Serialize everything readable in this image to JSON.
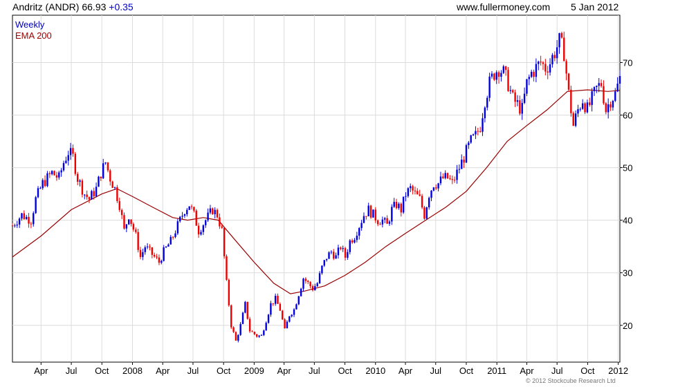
{
  "header": {
    "name": "Andritz (ANDR)",
    "price": "66.93",
    "change": "+0.35",
    "site": "www.fullermoney.com",
    "date": "5 Jan 2012"
  },
  "legend": {
    "weekly": "Weekly",
    "ema": "EMA 200"
  },
  "copyright": "© 2012 Stockcube Research Ltd",
  "colors": {
    "up": "#0000dd",
    "down": "#ee0000",
    "ema": "#990000",
    "grid": "#dcdcdc",
    "axis": "#000000"
  },
  "chart_data": {
    "type": "line",
    "ylim": [
      13,
      79
    ],
    "yticks": [
      20,
      30,
      40,
      50,
      60,
      70
    ],
    "xlim": [
      "2007-01-05",
      "2012-01-06"
    ],
    "xticks": [
      {
        "date": "2007-04-01",
        "label": "Apr"
      },
      {
        "date": "2007-07-01",
        "label": "Jul"
      },
      {
        "date": "2007-10-01",
        "label": "Oct"
      },
      {
        "date": "2008-01-01",
        "label": "2008"
      },
      {
        "date": "2008-04-01",
        "label": "Apr"
      },
      {
        "date": "2008-07-01",
        "label": "Jul"
      },
      {
        "date": "2008-10-01",
        "label": "Oct"
      },
      {
        "date": "2009-01-01",
        "label": "2009"
      },
      {
        "date": "2009-04-01",
        "label": "Apr"
      },
      {
        "date": "2009-07-01",
        "label": "Jul"
      },
      {
        "date": "2009-10-01",
        "label": "Oct"
      },
      {
        "date": "2010-01-01",
        "label": "2010"
      },
      {
        "date": "2010-04-01",
        "label": "Apr"
      },
      {
        "date": "2010-07-01",
        "label": "Jul"
      },
      {
        "date": "2010-10-01",
        "label": "Oct"
      },
      {
        "date": "2011-01-01",
        "label": "2011"
      },
      {
        "date": "2011-04-01",
        "label": "Apr"
      },
      {
        "date": "2011-07-01",
        "label": "Jul"
      },
      {
        "date": "2011-10-01",
        "label": "Oct"
      },
      {
        "date": "2012-01-01",
        "label": "2012"
      }
    ],
    "price_series": {
      "name": "Weekly",
      "points": [
        [
          "2007-01-05",
          39
        ],
        [
          "2007-02-02",
          41
        ],
        [
          "2007-03-02",
          40
        ],
        [
          "2007-03-16",
          44
        ],
        [
          "2007-04-06",
          47
        ],
        [
          "2007-05-04",
          49
        ],
        [
          "2007-05-25",
          48
        ],
        [
          "2007-06-08",
          51
        ],
        [
          "2007-06-22",
          53
        ],
        [
          "2007-07-06",
          52
        ],
        [
          "2007-07-20",
          48
        ],
        [
          "2007-08-10",
          45
        ],
        [
          "2007-08-24",
          44
        ],
        [
          "2007-09-14",
          46
        ],
        [
          "2007-09-28",
          49
        ],
        [
          "2007-10-12",
          51
        ],
        [
          "2007-10-26",
          48
        ],
        [
          "2007-11-09",
          46
        ],
        [
          "2007-11-23",
          43
        ],
        [
          "2007-12-07",
          38
        ],
        [
          "2007-12-21",
          41
        ],
        [
          "2008-01-11",
          37
        ],
        [
          "2008-01-25",
          33
        ],
        [
          "2008-02-08",
          35
        ],
        [
          "2008-02-22",
          34
        ],
        [
          "2008-03-07",
          33
        ],
        [
          "2008-03-21",
          32
        ],
        [
          "2008-04-04",
          34
        ],
        [
          "2008-04-25",
          36
        ],
        [
          "2008-05-16",
          39
        ],
        [
          "2008-06-06",
          42
        ],
        [
          "2008-06-20",
          43
        ],
        [
          "2008-07-04",
          41
        ],
        [
          "2008-07-18",
          38
        ],
        [
          "2008-08-08",
          40
        ],
        [
          "2008-08-29",
          42
        ],
        [
          "2008-09-12",
          41
        ],
        [
          "2008-09-26",
          38
        ],
        [
          "2008-10-10",
          28
        ],
        [
          "2008-10-24",
          20
        ],
        [
          "2008-11-07",
          17
        ],
        [
          "2008-11-21",
          20
        ],
        [
          "2008-12-05",
          24
        ],
        [
          "2008-12-19",
          19
        ],
        [
          "2009-01-09",
          18
        ],
        [
          "2009-01-23",
          18
        ],
        [
          "2009-02-06",
          21
        ],
        [
          "2009-02-20",
          24
        ],
        [
          "2009-03-06",
          25
        ],
        [
          "2009-03-20",
          23
        ],
        [
          "2009-04-03",
          19
        ],
        [
          "2009-04-17",
          22
        ],
        [
          "2009-05-01",
          23
        ],
        [
          "2009-05-15",
          26
        ],
        [
          "2009-05-29",
          29
        ],
        [
          "2009-06-12",
          28
        ],
        [
          "2009-06-26",
          27
        ],
        [
          "2009-07-10",
          28
        ],
        [
          "2009-07-24",
          31
        ],
        [
          "2009-08-07",
          33
        ],
        [
          "2009-08-21",
          34
        ],
        [
          "2009-09-04",
          33
        ],
        [
          "2009-09-18",
          35
        ],
        [
          "2009-10-02",
          33
        ],
        [
          "2009-10-16",
          36
        ],
        [
          "2009-10-30",
          37
        ],
        [
          "2009-11-13",
          39
        ],
        [
          "2009-11-27",
          41
        ],
        [
          "2009-12-11",
          42
        ],
        [
          "2009-12-25",
          41
        ],
        [
          "2010-01-08",
          40
        ],
        [
          "2010-01-22",
          40
        ],
        [
          "2010-02-05",
          39
        ],
        [
          "2010-02-19",
          42
        ],
        [
          "2010-03-05",
          43
        ],
        [
          "2010-03-19",
          42
        ],
        [
          "2010-04-02",
          45
        ],
        [
          "2010-04-16",
          46
        ],
        [
          "2010-04-30",
          45
        ],
        [
          "2010-05-14",
          44
        ],
        [
          "2010-05-28",
          41
        ],
        [
          "2010-06-11",
          45
        ],
        [
          "2010-06-25",
          47
        ],
        [
          "2010-07-09",
          47
        ],
        [
          "2010-07-23",
          48
        ],
        [
          "2010-08-06",
          48
        ],
        [
          "2010-08-20",
          47
        ],
        [
          "2010-09-03",
          49
        ],
        [
          "2010-09-17",
          51
        ],
        [
          "2010-10-01",
          53
        ],
        [
          "2010-10-15",
          55
        ],
        [
          "2010-10-29",
          56
        ],
        [
          "2010-11-12",
          58
        ],
        [
          "2010-11-26",
          63
        ],
        [
          "2010-12-10",
          66
        ],
        [
          "2010-12-24",
          68
        ],
        [
          "2011-01-07",
          69
        ],
        [
          "2011-01-21",
          68
        ],
        [
          "2011-02-04",
          66
        ],
        [
          "2011-02-18",
          63
        ],
        [
          "2011-03-04",
          62
        ],
        [
          "2011-03-18",
          61
        ],
        [
          "2011-04-01",
          66
        ],
        [
          "2011-04-15",
          68
        ],
        [
          "2011-04-29",
          69
        ],
        [
          "2011-05-13",
          70
        ],
        [
          "2011-05-27",
          69
        ],
        [
          "2011-06-10",
          70
        ],
        [
          "2011-06-24",
          72
        ],
        [
          "2011-07-08",
          74
        ],
        [
          "2011-07-22",
          72
        ],
        [
          "2011-08-05",
          64
        ],
        [
          "2011-08-19",
          58
        ],
        [
          "2011-09-02",
          61
        ],
        [
          "2011-09-16",
          63
        ],
        [
          "2011-09-30",
          61
        ],
        [
          "2011-10-14",
          63
        ],
        [
          "2011-10-28",
          65
        ],
        [
          "2011-11-11",
          66
        ],
        [
          "2011-11-25",
          61
        ],
        [
          "2011-12-09",
          63
        ],
        [
          "2011-12-23",
          64
        ],
        [
          "2012-01-06",
          67
        ]
      ]
    },
    "ema_series": {
      "name": "EMA 200",
      "points": [
        [
          "2007-01-05",
          33
        ],
        [
          "2007-04-01",
          37
        ],
        [
          "2007-07-01",
          42
        ],
        [
          "2007-10-01",
          45
        ],
        [
          "2007-11-15",
          46
        ],
        [
          "2008-01-01",
          44.5
        ],
        [
          "2008-03-01",
          42.5
        ],
        [
          "2008-05-01",
          40.5
        ],
        [
          "2008-06-15",
          40
        ],
        [
          "2008-08-01",
          40.5
        ],
        [
          "2008-09-15",
          40
        ],
        [
          "2008-11-01",
          36.5
        ],
        [
          "2009-01-01",
          32
        ],
        [
          "2009-03-01",
          28
        ],
        [
          "2009-04-20",
          26
        ],
        [
          "2009-06-01",
          26.5
        ],
        [
          "2009-08-01",
          27.5
        ],
        [
          "2009-10-01",
          29.5
        ],
        [
          "2009-12-01",
          32
        ],
        [
          "2010-02-01",
          35
        ],
        [
          "2010-04-01",
          37.5
        ],
        [
          "2010-06-01",
          40
        ],
        [
          "2010-08-01",
          42.5
        ],
        [
          "2010-10-01",
          45.5
        ],
        [
          "2010-12-01",
          50
        ],
        [
          "2011-02-01",
          55
        ],
        [
          "2011-04-01",
          58
        ],
        [
          "2011-06-01",
          61
        ],
        [
          "2011-08-01",
          64.5
        ],
        [
          "2011-10-01",
          64.8
        ],
        [
          "2011-12-01",
          64.5
        ],
        [
          "2012-01-06",
          64.7
        ]
      ]
    }
  }
}
